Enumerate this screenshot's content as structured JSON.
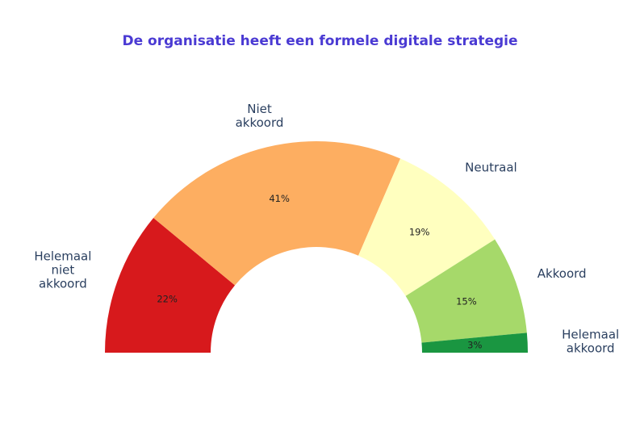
{
  "chart_data": {
    "type": "pie",
    "variant": "semi-donut",
    "title": "De organisatie heeft een formele digitale strategie",
    "slices": [
      {
        "label": "Helemaal niet akkoord",
        "value": 22,
        "text": "22%",
        "color": "#d7191c"
      },
      {
        "label": "Niet akkoord",
        "value": 41,
        "text": "41%",
        "color": "#fdae61"
      },
      {
        "label": "Neutraal",
        "value": 19,
        "text": "19%",
        "color": "#ffffbf"
      },
      {
        "label": "Akkoord",
        "value": 15,
        "text": "15%",
        "color": "#a6d96a"
      },
      {
        "label": "Helemaal akkoord",
        "value": 3,
        "text": "3%",
        "color": "#1a9641"
      }
    ],
    "title_color": "#4a3ad3",
    "label_color": "#2a3f5f",
    "legend": "none"
  }
}
